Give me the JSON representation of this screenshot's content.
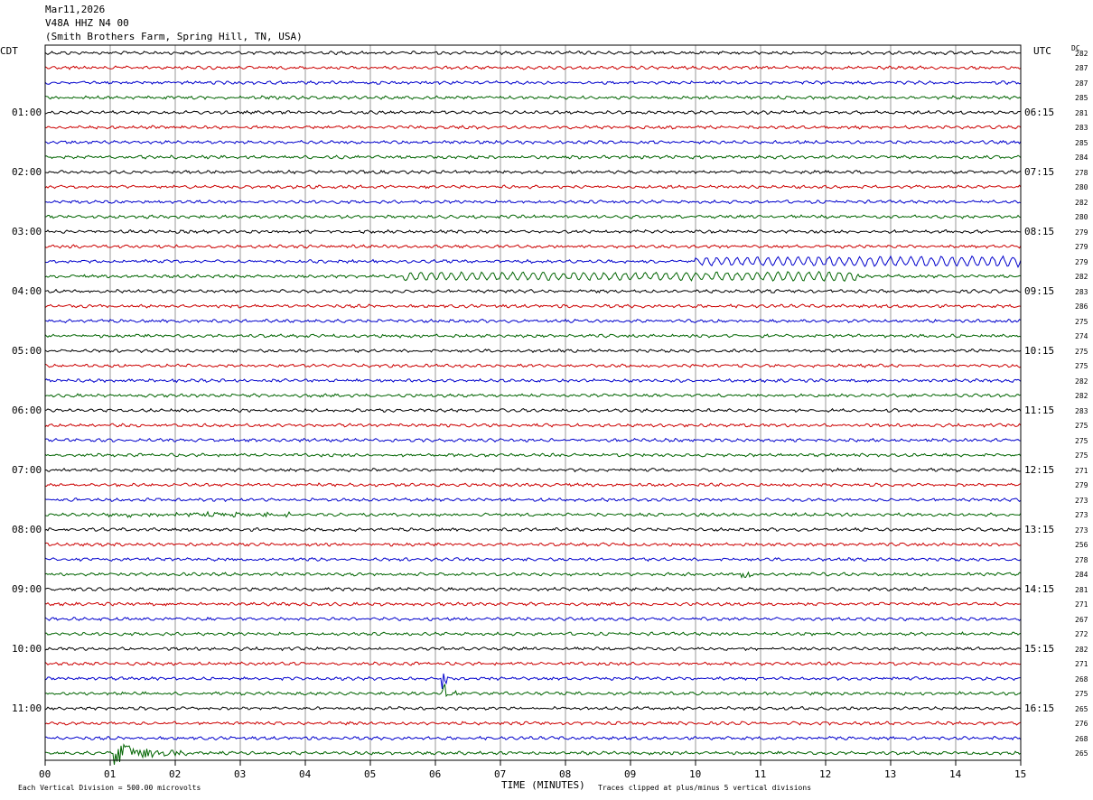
{
  "header": {
    "date": "Mar11,2026",
    "station": "V48A HHZ N4 00",
    "location": "(Smith Brothers Farm, Spring Hill, TN, USA)"
  },
  "left_axis_title": "CDT",
  "right_axis_title": "UTC",
  "dc_title": "DC",
  "footer": {
    "scale_note": "Each Vertical Division =  500.00 microvolts",
    "xlabel": "TIME (MINUTES)",
    "clip_note": "Traces clipped at plus/minus 5 vertical divisions"
  },
  "colors": {
    "trace_cycle": [
      "#000000",
      "#cc0000",
      "#0000cc",
      "#006400"
    ],
    "grid": "#999999"
  },
  "chart_data": {
    "type": "line",
    "description_type": "helicorder",
    "xlabel": "TIME (MINUTES)",
    "x_ticks": [
      "00",
      "01",
      "02",
      "03",
      "04",
      "05",
      "06",
      "07",
      "08",
      "09",
      "10",
      "11",
      "12",
      "13",
      "14",
      "15"
    ],
    "xlim": [
      0,
      15
    ],
    "rows_per_hour": 4,
    "minutes_per_row": 15,
    "cdt_hour_labels": [
      "01:00",
      "02:00",
      "03:00",
      "04:00",
      "05:00",
      "06:00",
      "07:00",
      "08:00",
      "09:00",
      "10:00",
      "11:00"
    ],
    "utc_hour_labels": [
      "06:15",
      "07:15",
      "08:15",
      "09:15",
      "10:15",
      "11:15",
      "12:15",
      "13:15",
      "14:15",
      "15:15",
      "16:15"
    ],
    "dc_offsets": [
      282,
      287,
      287,
      285,
      281,
      283,
      285,
      284,
      278,
      280,
      282,
      280,
      279,
      279,
      279,
      282,
      283,
      286,
      275,
      274,
      275,
      275,
      282,
      282,
      283,
      275,
      275,
      275,
      271,
      279,
      273,
      273,
      273,
      256,
      278,
      284,
      281,
      271,
      267,
      272,
      282,
      271,
      268,
      275,
      265,
      276,
      268,
      265
    ],
    "events": [
      {
        "row": 31,
        "minute_start": 0.8,
        "minute_end": 3.8,
        "amplitude": "small"
      },
      {
        "row": 14,
        "minute_start": 10.0,
        "minute_end": 15.0,
        "amplitude": "moderate"
      },
      {
        "row": 15,
        "minute_start": 5.5,
        "minute_end": 12.5,
        "amplitude": "moderate"
      },
      {
        "row": 35,
        "minute_start": 10.7,
        "minute_end": 10.9,
        "amplitude": "spike"
      },
      {
        "row": 42,
        "minute_start": 6.1,
        "minute_end": 6.3,
        "amplitude": "large"
      },
      {
        "row": 43,
        "minute_start": 6.1,
        "minute_end": 6.4,
        "amplitude": "large"
      },
      {
        "row": 47,
        "minute_start": 1.05,
        "minute_end": 2.5,
        "amplitude": "large"
      }
    ]
  }
}
